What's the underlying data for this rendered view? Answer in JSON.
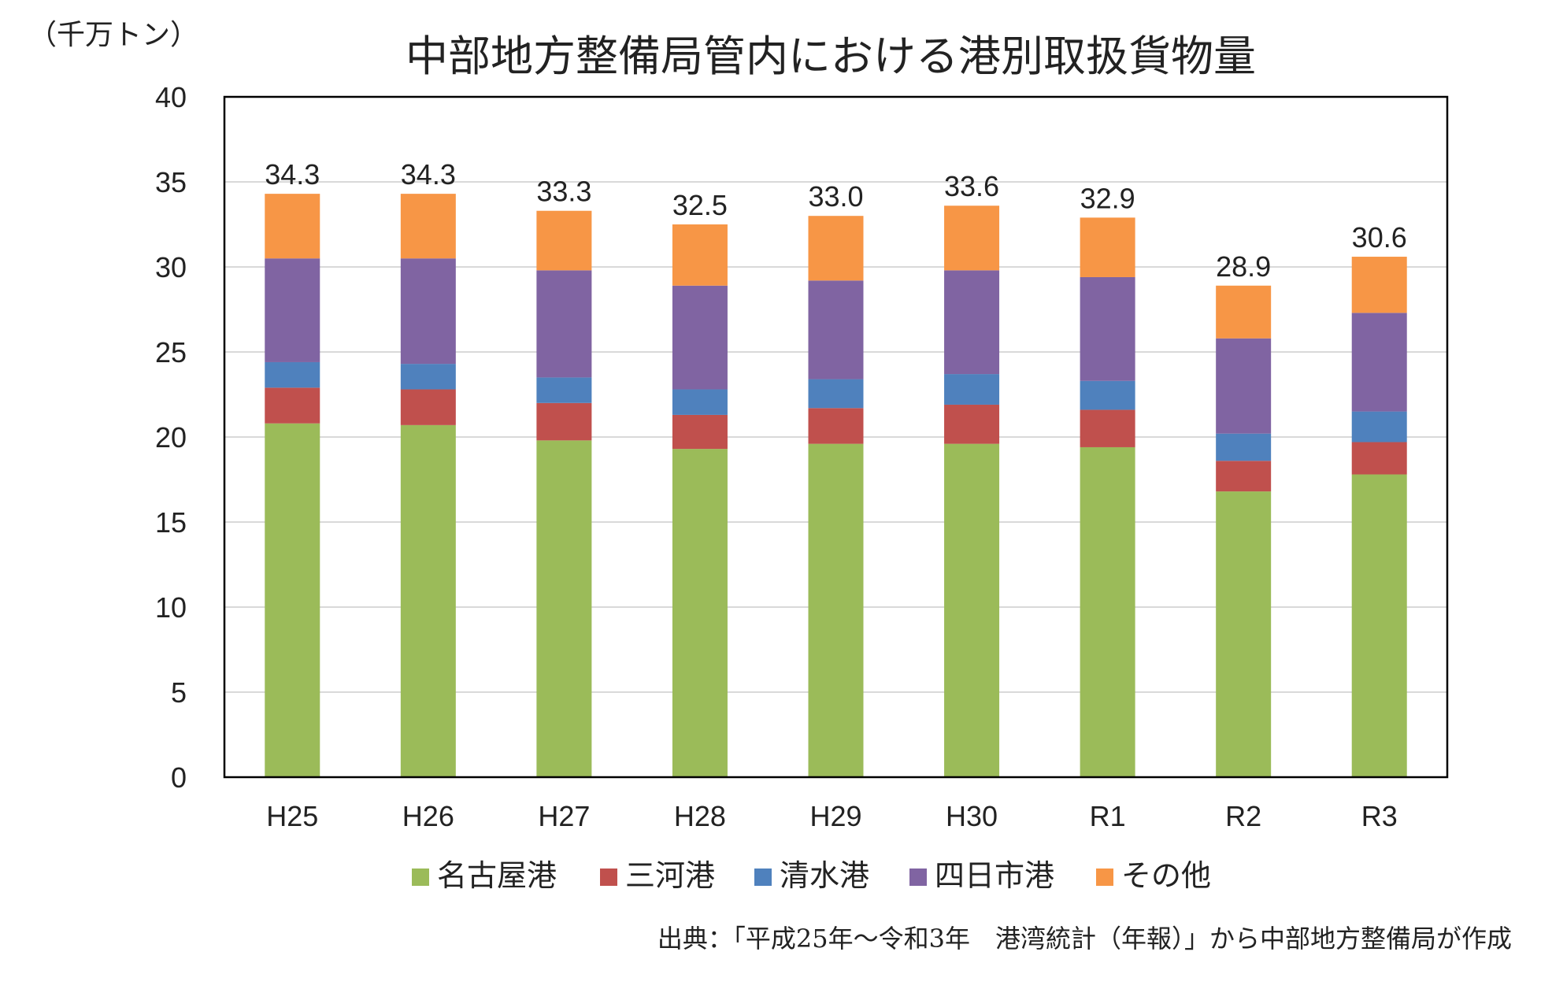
{
  "title": "中部地方整備局管内における港別取扱貨物量",
  "unit_label": "（千万トン）",
  "source_note": "出典：「平成25年～令和3年　港湾統計（年報）」から中部地方整備局が作成",
  "chart_data": {
    "type": "bar",
    "stacked": true,
    "title": "中部地方整備局管内における港別取扱貨物量",
    "ylabel": "（千万トン）",
    "xlabel": "",
    "ylim": [
      0,
      40
    ],
    "yticks": [
      0,
      5,
      10,
      15,
      20,
      25,
      30,
      35,
      40
    ],
    "grid": true,
    "legend_position": "bottom",
    "categories": [
      "H25",
      "H26",
      "H27",
      "H28",
      "H29",
      "H30",
      "R1",
      "R2",
      "R3"
    ],
    "series": [
      {
        "name": "名古屋港",
        "color": "#9BBB59",
        "values": [
          20.8,
          20.7,
          19.8,
          19.3,
          19.6,
          19.6,
          19.4,
          16.8,
          17.8
        ]
      },
      {
        "name": "三河港",
        "color": "#C0504D",
        "values": [
          2.1,
          2.1,
          2.2,
          2.0,
          2.1,
          2.3,
          2.2,
          1.8,
          1.9
        ]
      },
      {
        "name": "清水港",
        "color": "#4F81BD",
        "values": [
          1.5,
          1.5,
          1.5,
          1.5,
          1.7,
          1.8,
          1.7,
          1.6,
          1.8
        ]
      },
      {
        "name": "四日市港",
        "color": "#8064A2",
        "values": [
          6.1,
          6.2,
          6.3,
          6.1,
          5.8,
          6.1,
          6.1,
          5.6,
          5.8
        ]
      },
      {
        "name": "その他",
        "color": "#F79646",
        "values": [
          3.8,
          3.8,
          3.5,
          3.6,
          3.8,
          3.8,
          3.5,
          3.1,
          3.3
        ]
      }
    ],
    "totals": [
      "34.3",
      "34.3",
      "33.3",
      "32.5",
      "33.0",
      "33.6",
      "32.9",
      "28.9",
      "30.6"
    ]
  }
}
